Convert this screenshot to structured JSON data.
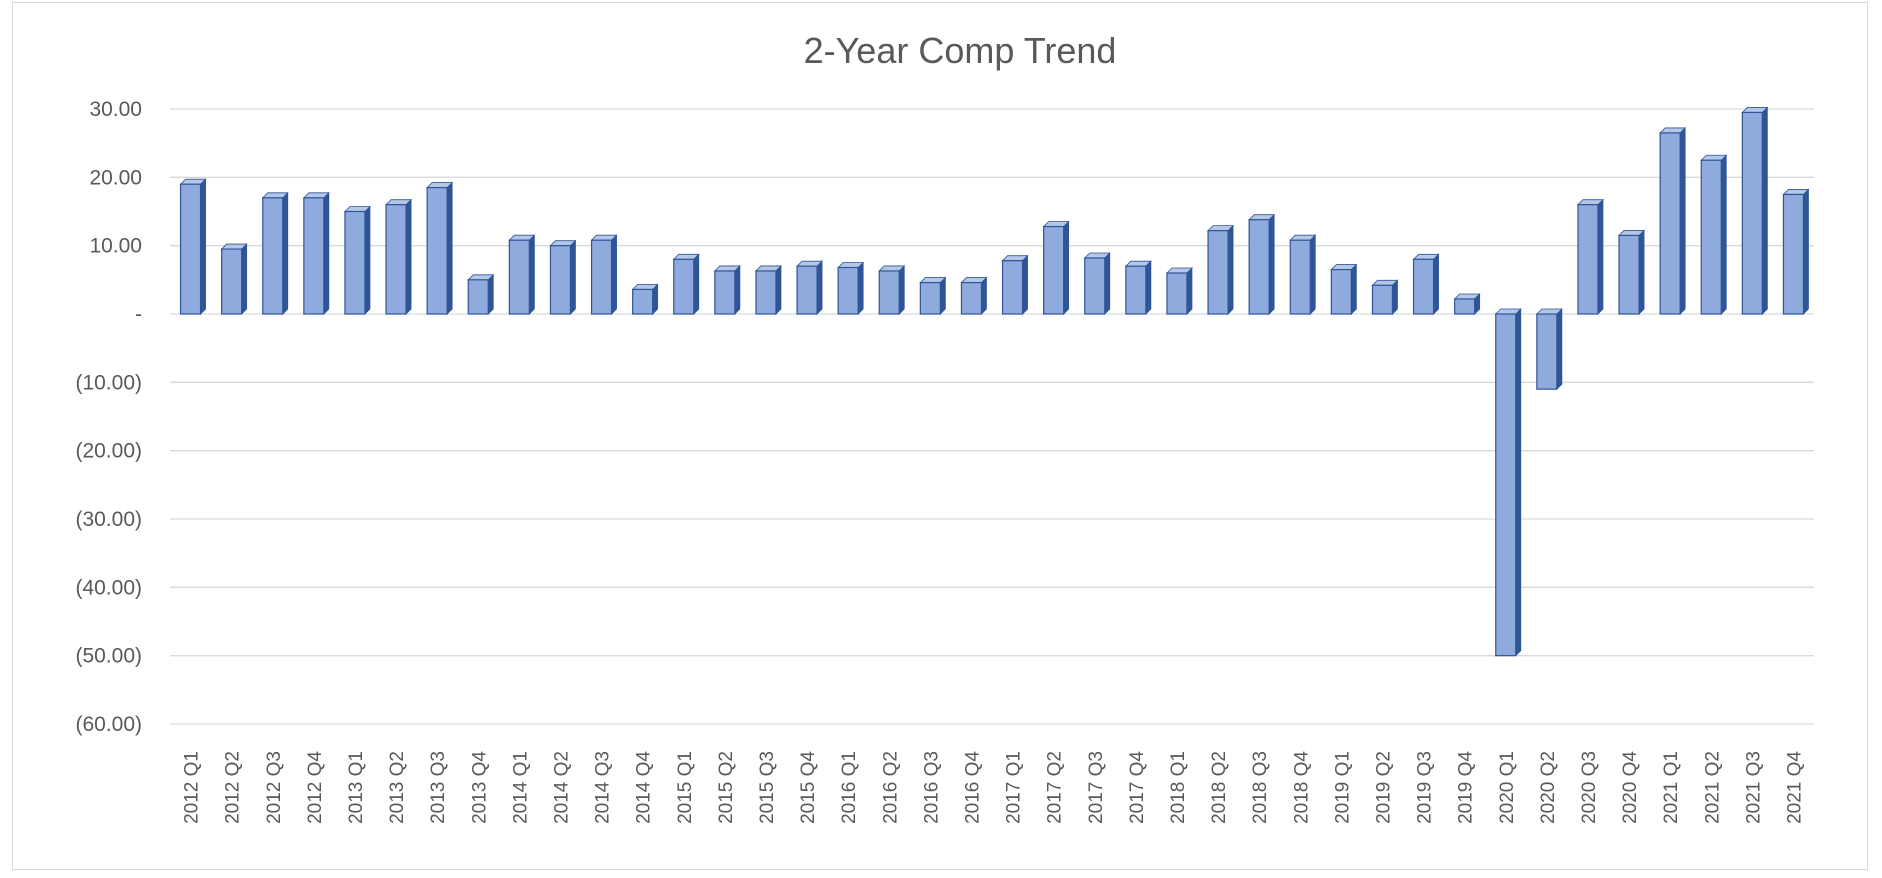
{
  "chart_data": {
    "type": "bar",
    "title": "2-Year Comp Trend",
    "xlabel": "",
    "ylabel": "",
    "ylim": [
      -60,
      30
    ],
    "yticks": [
      {
        "value": 30,
        "label": "30.00"
      },
      {
        "value": 20,
        "label": "20.00"
      },
      {
        "value": 10,
        "label": "10.00"
      },
      {
        "value": 0,
        "label": "-"
      },
      {
        "value": -10,
        "label": "(10.00)"
      },
      {
        "value": -20,
        "label": "(20.00)"
      },
      {
        "value": -30,
        "label": "(30.00)"
      },
      {
        "value": -40,
        "label": "(40.00)"
      },
      {
        "value": -50,
        "label": "(50.00)"
      },
      {
        "value": -60,
        "label": "(60.00)"
      }
    ],
    "grid": true,
    "bar_color": "#8faadc",
    "bar_edge_color": "#2f5597",
    "categories": [
      "2012 Q1",
      "2012 Q2",
      "2012 Q3",
      "2012 Q4",
      "2013 Q1",
      "2013 Q2",
      "2013 Q3",
      "2013 Q4",
      "2014 Q1",
      "2014 Q2",
      "2014 Q3",
      "2014 Q4",
      "2015 Q1",
      "2015 Q2",
      "2015 Q3",
      "2015 Q4",
      "2016 Q1",
      "2016 Q2",
      "2016 Q3",
      "2016 Q4",
      "2017 Q1",
      "2017 Q2",
      "2017 Q3",
      "2017 Q4",
      "2018 Q1",
      "2018 Q2",
      "2018 Q3",
      "2018 Q4",
      "2019 Q1",
      "2019 Q2",
      "2019 Q3",
      "2019 Q4",
      "2020 Q1",
      "2020 Q2",
      "2020 Q3",
      "2020 Q4",
      "2021 Q1",
      "2021 Q2",
      "2021 Q3",
      "2021 Q4"
    ],
    "values": [
      19.0,
      9.5,
      17.0,
      17.0,
      15.0,
      16.0,
      18.5,
      5.0,
      10.8,
      10.0,
      10.8,
      3.6,
      8.0,
      6.3,
      6.3,
      7.0,
      6.8,
      6.3,
      4.6,
      4.6,
      7.8,
      12.8,
      8.2,
      7.0,
      6.0,
      12.2,
      13.8,
      10.8,
      6.5,
      4.2,
      8.0,
      2.2,
      -50.0,
      -11.0,
      16.0,
      11.5,
      26.5,
      22.5,
      29.5,
      17.5
    ]
  }
}
